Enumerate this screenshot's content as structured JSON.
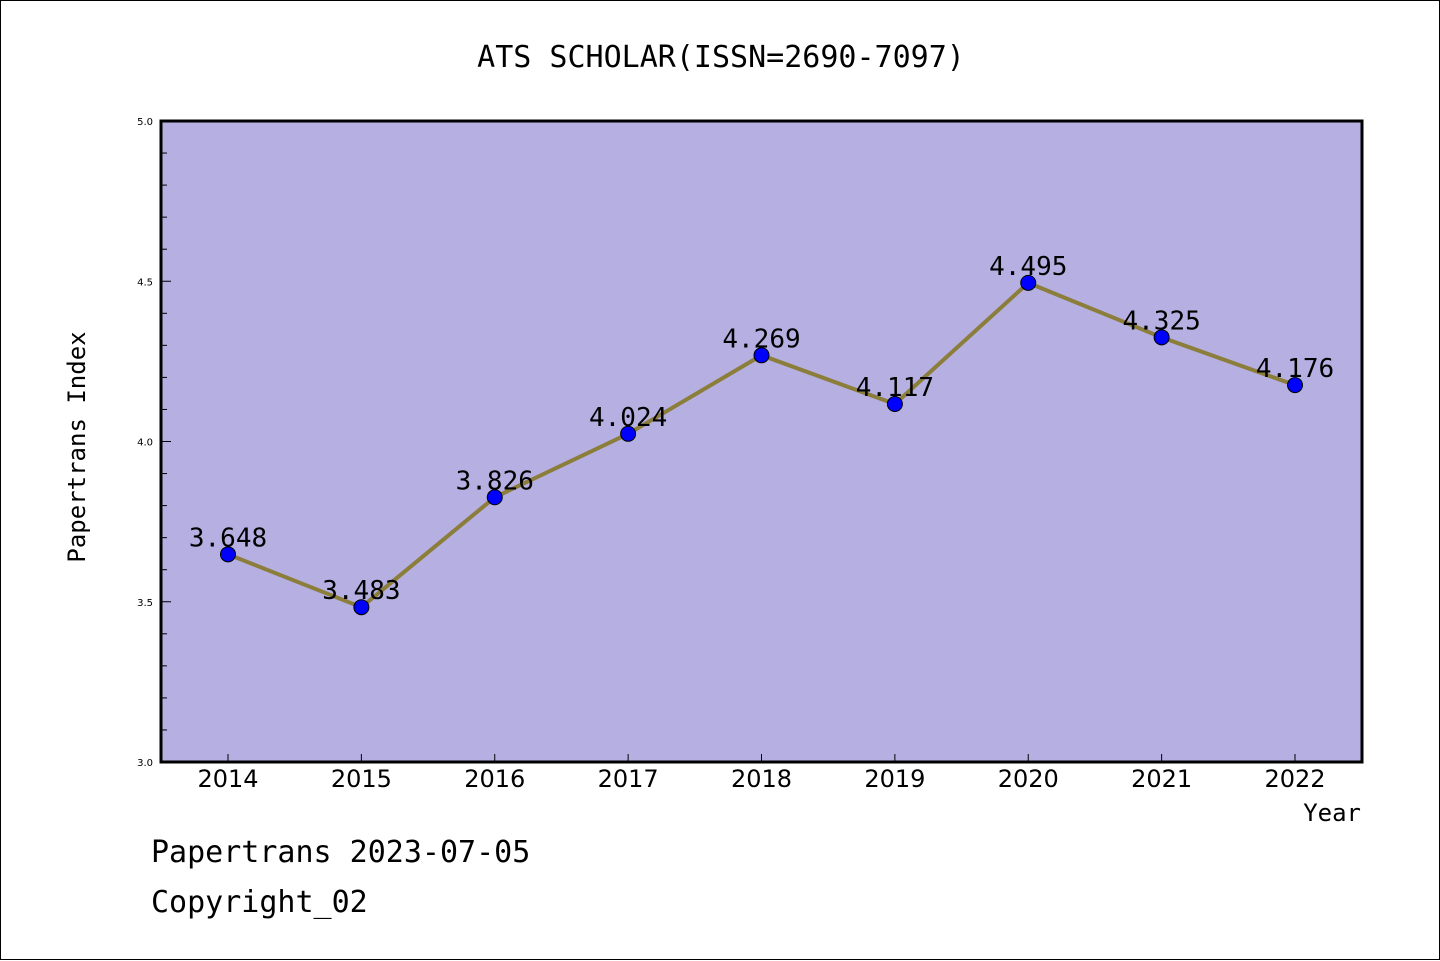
{
  "chart_data": {
    "type": "line",
    "title": "ATS SCHOLAR(ISSN=2690-7097)",
    "xlabel": "Year",
    "ylabel": "Papertrans Index",
    "ylim": [
      3.0,
      5.0
    ],
    "yticks": [
      "3.0",
      "3.5",
      "4.0",
      "4.5",
      "5.0"
    ],
    "categories": [
      "2014",
      "2015",
      "2016",
      "2017",
      "2018",
      "2019",
      "2020",
      "2021",
      "2022"
    ],
    "series": [
      {
        "values": [
          3.648,
          3.483,
          3.826,
          4.024,
          4.269,
          4.117,
          4.495,
          4.325,
          4.176
        ],
        "labels": [
          "3.648",
          "3.483",
          "3.826",
          "4.024",
          "4.269",
          "4.117",
          "4.495",
          "4.325",
          "4.176"
        ],
        "line_color": "#8b7d3a",
        "marker_color": "#0000ff"
      }
    ],
    "plot_background": "#b5afe2",
    "grid": false,
    "legend": "none"
  },
  "footer": {
    "line1": "Papertrans 2023-07-05",
    "line2": "Copyright_02"
  }
}
